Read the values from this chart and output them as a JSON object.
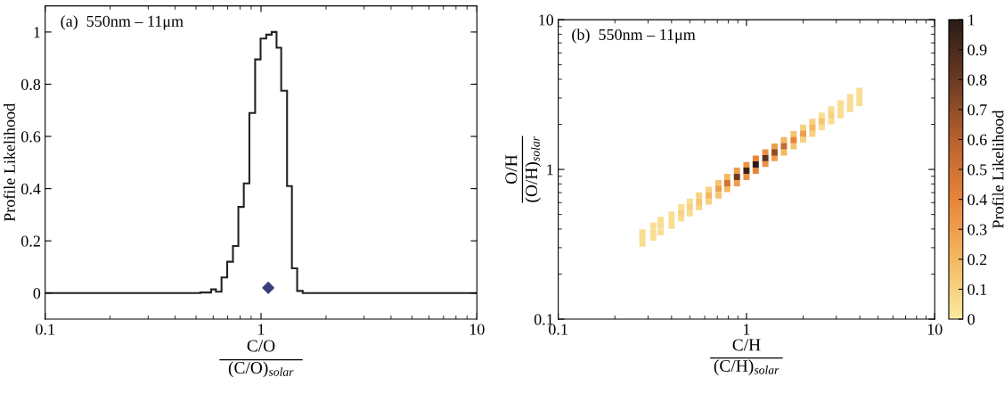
{
  "chart_data": [
    {
      "type": "histogram",
      "color": "#222222",
      "xlabel": "C/O\n(C/O)$_{solar}$",
      "ylabel": "Profile Likelihood",
      "annotations": [
        "(a)  550nm – 11μm"
      ],
      "bins": [
        0.1,
        0.523,
        0.587,
        0.618,
        0.656,
        0.697,
        0.741,
        0.785,
        0.832,
        0.883,
        0.939,
        0.995,
        1.057,
        1.12,
        1.18,
        1.24,
        1.32,
        1.39,
        1.47,
        1.56,
        10
      ],
      "values": [
        0,
        0.002,
        0.014,
        0.005,
        0.06,
        0.12,
        0.18,
        0.33,
        0.42,
        0.69,
        0.895,
        0.975,
        0.99,
        1.0,
        0.94,
        0.775,
        0.41,
        0.095,
        0.008,
        0
      ],
      "series": [
        {
          "type": "scatter",
          "x": [
            1.08
          ],
          "values": [
            0.02
          ],
          "color": "#3b3b7d",
          "marker": "diamond"
        }
      ],
      "log": "x",
      "xlim": [
        0.1,
        10
      ],
      "xticks": [
        0.1,
        1,
        10
      ],
      "ylim": [
        -0.1,
        1.1
      ],
      "yticks": [
        0,
        0.2,
        0.4,
        0.6,
        0.8,
        1
      ]
    },
    {
      "type": "scatter",
      "xlabel": "C/H\n(C/H)$_{solar}$",
      "ylabel": "O/H\n(O/H)$_{solar}$",
      "clabel": "Profile Likelihood",
      "annotations": [
        "(b)  550nm – 11μm"
      ],
      "x": [
        0.28,
        0.32,
        0.35,
        0.4,
        0.45,
        0.5,
        0.56,
        0.63,
        0.71,
        0.79,
        0.89,
        1.0,
        1.12,
        1.26,
        1.41,
        1.58,
        1.78,
        2.0,
        2.24,
        2.51,
        2.82,
        3.16,
        3.55,
        3.98,
        0.28,
        0.32,
        0.35,
        0.4,
        0.45,
        0.5,
        0.56,
        0.63,
        0.71,
        0.79,
        0.89,
        1.0,
        1.12,
        1.26,
        1.41,
        1.58,
        1.78,
        2.0,
        2.24,
        2.51,
        2.82,
        3.16,
        3.55,
        3.98,
        0.28,
        0.32,
        0.35,
        0.4,
        0.45,
        0.5,
        0.56,
        0.63,
        0.71,
        0.79,
        0.89,
        1.0,
        1.12,
        1.26,
        1.41,
        1.58,
        1.78,
        2.0,
        2.24,
        2.51,
        2.82,
        3.16,
        3.55,
        3.98
      ],
      "values": [
        0.38,
        0.42,
        0.46,
        0.5,
        0.56,
        0.61,
        0.67,
        0.73,
        0.81,
        0.89,
        0.98,
        1.07,
        1.18,
        1.3,
        1.42,
        1.57,
        1.72,
        1.9,
        2.08,
        2.29,
        2.52,
        2.76,
        3.04,
        3.34,
        0.32,
        0.35,
        0.38,
        0.42,
        0.47,
        0.51,
        0.56,
        0.61,
        0.67,
        0.74,
        0.81,
        0.89,
        0.98,
        1.09,
        1.19,
        1.3,
        1.43,
        1.58,
        1.73,
        1.91,
        2.1,
        2.3,
        2.53,
        2.78,
        0.35,
        0.38,
        0.42,
        0.46,
        0.51,
        0.56,
        0.61,
        0.67,
        0.74,
        0.81,
        0.89,
        0.98,
        1.08,
        1.19,
        1.3,
        1.43,
        1.57,
        1.73,
        1.9,
        2.09,
        2.3,
        2.52,
        2.77,
        3.05
      ],
      "cvalues": [
        0.05,
        0.05,
        0.05,
        0.05,
        0.05,
        0.05,
        0.1,
        0.1,
        0.15,
        0.2,
        0.3,
        0.35,
        0.4,
        0.35,
        0.3,
        0.2,
        0.15,
        0.1,
        0.1,
        0.05,
        0.05,
        0.05,
        0.05,
        0.05,
        0.05,
        0.05,
        0.05,
        0.05,
        0.05,
        0.05,
        0.1,
        0.1,
        0.15,
        0.2,
        0.3,
        0.35,
        0.4,
        0.35,
        0.3,
        0.2,
        0.15,
        0.1,
        0.1,
        0.05,
        0.05,
        0.05,
        0.05,
        0.05,
        0.05,
        0.05,
        0.05,
        0.05,
        0.1,
        0.1,
        0.15,
        0.2,
        0.3,
        0.5,
        0.8,
        0.95,
        1.0,
        0.85,
        0.7,
        0.55,
        0.4,
        0.3,
        0.2,
        0.15,
        0.1,
        0.05,
        0.05,
        0.05
      ],
      "marker": "square",
      "log": "xy",
      "xlim": [
        0.1,
        10
      ],
      "xticks": [
        0.1,
        1,
        10
      ],
      "ylim": [
        0.1,
        10
      ],
      "yticks": [
        0.1,
        1,
        10
      ],
      "clim": [
        0,
        1
      ],
      "cticks": [
        0,
        0.1,
        0.2,
        0.3,
        0.4,
        0.5,
        0.6,
        0.7,
        0.8,
        0.9,
        1
      ]
    }
  ]
}
